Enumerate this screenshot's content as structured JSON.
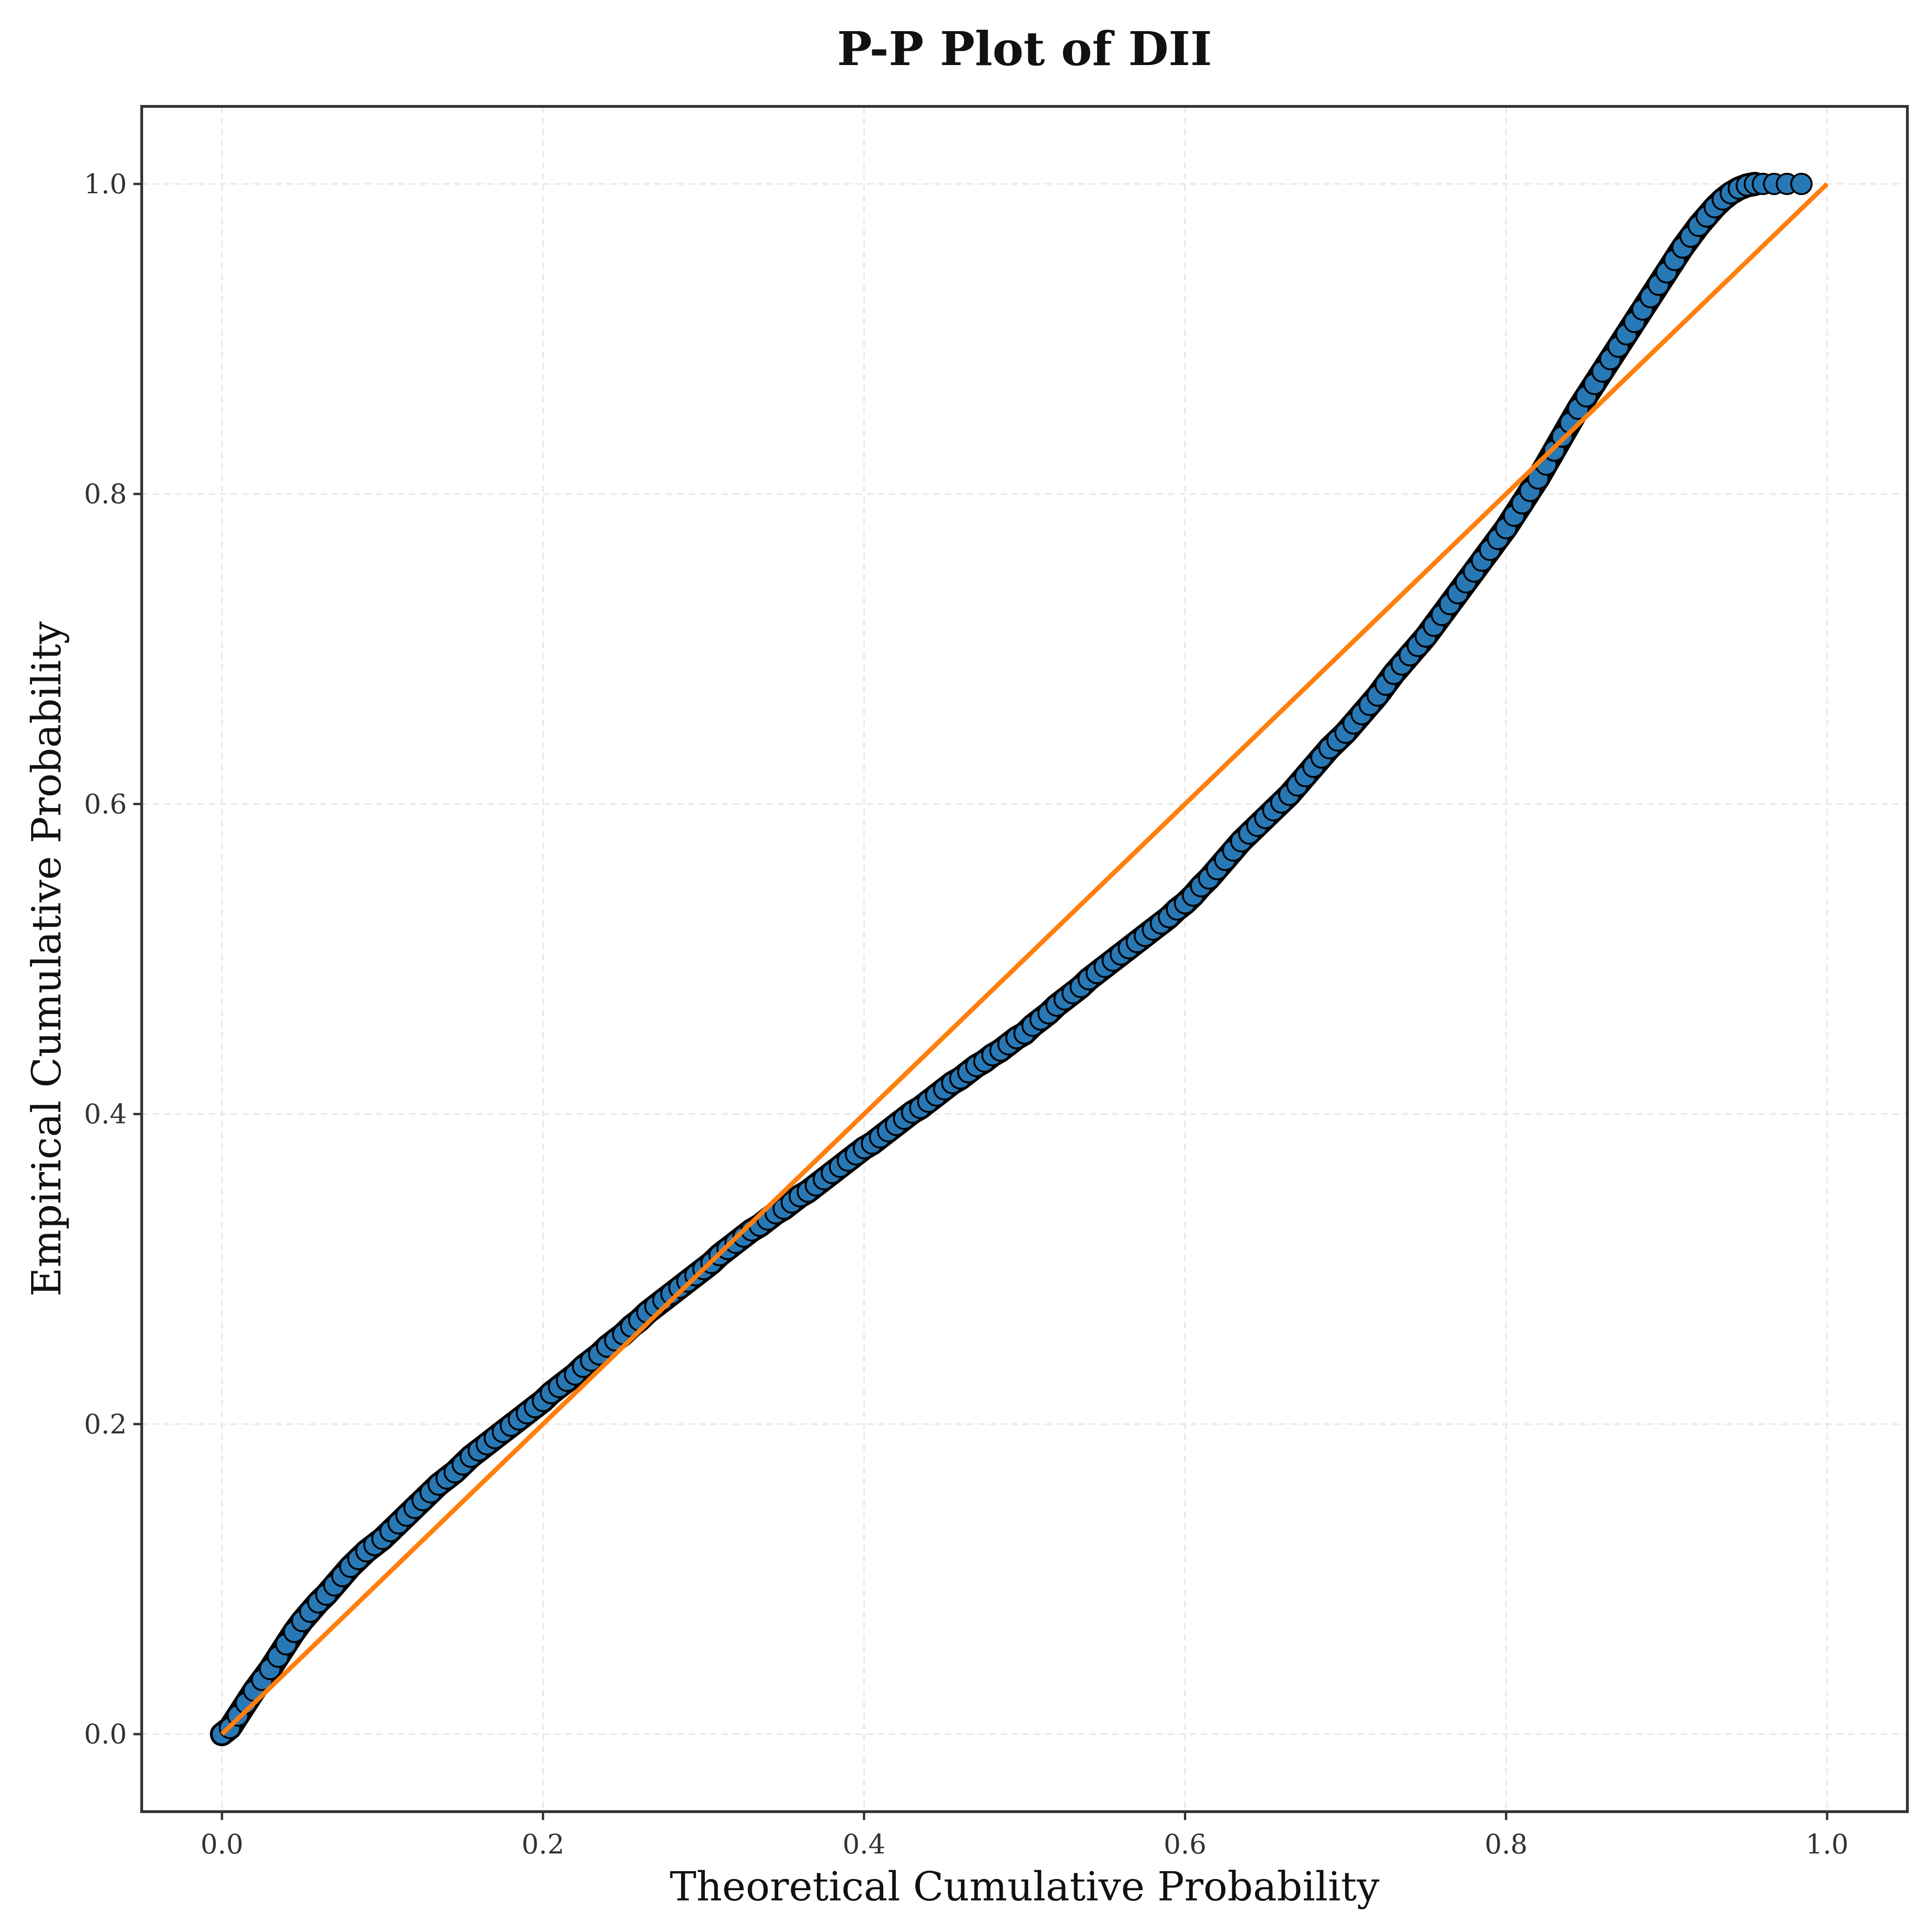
{
  "chart_data": {
    "type": "scatter",
    "title": "P-P Plot of DII",
    "xlabel": "Theoretical Cumulative Probability",
    "ylabel": "Empirical Cumulative Probability",
    "xlim": [
      -0.05,
      1.05
    ],
    "ylim": [
      -0.05,
      1.05
    ],
    "xticks": [
      "0.0",
      "0.2",
      "0.4",
      "0.6",
      "0.8",
      "1.0"
    ],
    "yticks": [
      "0.0",
      "0.2",
      "0.4",
      "0.6",
      "0.8",
      "1.0"
    ],
    "grid": true,
    "series": [
      {
        "marker_fill": "#2878b5",
        "marker_edge": "#000000",
        "points": [
          [
            0.0,
            0.0
          ],
          [
            0.005,
            0.004
          ],
          [
            0.01,
            0.012
          ],
          [
            0.015,
            0.02
          ],
          [
            0.02,
            0.028
          ],
          [
            0.025,
            0.035
          ],
          [
            0.03,
            0.042
          ],
          [
            0.035,
            0.05
          ],
          [
            0.04,
            0.058
          ],
          [
            0.045,
            0.066
          ],
          [
            0.05,
            0.073
          ],
          [
            0.055,
            0.079
          ],
          [
            0.06,
            0.085
          ],
          [
            0.065,
            0.09
          ],
          [
            0.07,
            0.096
          ],
          [
            0.075,
            0.102
          ],
          [
            0.08,
            0.108
          ],
          [
            0.085,
            0.113
          ],
          [
            0.09,
            0.118
          ],
          [
            0.095,
            0.122
          ],
          [
            0.1,
            0.126
          ],
          [
            0.105,
            0.131
          ],
          [
            0.11,
            0.136
          ],
          [
            0.115,
            0.141
          ],
          [
            0.12,
            0.146
          ],
          [
            0.125,
            0.151
          ],
          [
            0.13,
            0.156
          ],
          [
            0.135,
            0.161
          ],
          [
            0.14,
            0.165
          ],
          [
            0.145,
            0.169
          ],
          [
            0.15,
            0.174
          ],
          [
            0.155,
            0.179
          ],
          [
            0.16,
            0.183
          ],
          [
            0.165,
            0.187
          ],
          [
            0.17,
            0.191
          ],
          [
            0.175,
            0.195
          ],
          [
            0.18,
            0.199
          ],
          [
            0.185,
            0.203
          ],
          [
            0.19,
            0.207
          ],
          [
            0.195,
            0.211
          ],
          [
            0.2,
            0.215
          ],
          [
            0.205,
            0.22
          ],
          [
            0.21,
            0.224
          ],
          [
            0.215,
            0.228
          ],
          [
            0.22,
            0.232
          ],
          [
            0.225,
            0.237
          ],
          [
            0.23,
            0.241
          ],
          [
            0.235,
            0.245
          ],
          [
            0.24,
            0.25
          ],
          [
            0.245,
            0.254
          ],
          [
            0.25,
            0.258
          ],
          [
            0.255,
            0.263
          ],
          [
            0.26,
            0.267
          ],
          [
            0.265,
            0.272
          ],
          [
            0.27,
            0.276
          ],
          [
            0.275,
            0.28
          ],
          [
            0.28,
            0.284
          ],
          [
            0.285,
            0.288
          ],
          [
            0.29,
            0.292
          ],
          [
            0.295,
            0.296
          ],
          [
            0.3,
            0.3
          ],
          [
            0.305,
            0.304
          ],
          [
            0.31,
            0.309
          ],
          [
            0.315,
            0.313
          ],
          [
            0.32,
            0.317
          ],
          [
            0.325,
            0.321
          ],
          [
            0.33,
            0.325
          ],
          [
            0.335,
            0.328
          ],
          [
            0.34,
            0.332
          ],
          [
            0.345,
            0.336
          ],
          [
            0.35,
            0.339
          ],
          [
            0.355,
            0.343
          ],
          [
            0.36,
            0.347
          ],
          [
            0.365,
            0.35
          ],
          [
            0.37,
            0.354
          ],
          [
            0.375,
            0.358
          ],
          [
            0.38,
            0.362
          ],
          [
            0.385,
            0.366
          ],
          [
            0.39,
            0.37
          ],
          [
            0.395,
            0.374
          ],
          [
            0.4,
            0.378
          ],
          [
            0.405,
            0.381
          ],
          [
            0.41,
            0.385
          ],
          [
            0.415,
            0.389
          ],
          [
            0.42,
            0.393
          ],
          [
            0.425,
            0.397
          ],
          [
            0.43,
            0.401
          ],
          [
            0.435,
            0.404
          ],
          [
            0.44,
            0.408
          ],
          [
            0.445,
            0.412
          ],
          [
            0.45,
            0.416
          ],
          [
            0.455,
            0.42
          ],
          [
            0.46,
            0.423
          ],
          [
            0.465,
            0.427
          ],
          [
            0.47,
            0.431
          ],
          [
            0.475,
            0.434
          ],
          [
            0.48,
            0.438
          ],
          [
            0.485,
            0.441
          ],
          [
            0.49,
            0.445
          ],
          [
            0.495,
            0.449
          ],
          [
            0.5,
            0.452
          ],
          [
            0.505,
            0.457
          ],
          [
            0.51,
            0.461
          ],
          [
            0.515,
            0.465
          ],
          [
            0.52,
            0.47
          ],
          [
            0.525,
            0.474
          ],
          [
            0.53,
            0.478
          ],
          [
            0.535,
            0.482
          ],
          [
            0.54,
            0.487
          ],
          [
            0.545,
            0.491
          ],
          [
            0.55,
            0.495
          ],
          [
            0.555,
            0.499
          ],
          [
            0.56,
            0.503
          ],
          [
            0.565,
            0.507
          ],
          [
            0.57,
            0.511
          ],
          [
            0.575,
            0.515
          ],
          [
            0.58,
            0.519
          ],
          [
            0.585,
            0.523
          ],
          [
            0.59,
            0.527
          ],
          [
            0.595,
            0.532
          ],
          [
            0.6,
            0.536
          ],
          [
            0.605,
            0.541
          ],
          [
            0.61,
            0.547
          ],
          [
            0.615,
            0.552
          ],
          [
            0.62,
            0.558
          ],
          [
            0.625,
            0.564
          ],
          [
            0.63,
            0.57
          ],
          [
            0.635,
            0.576
          ],
          [
            0.64,
            0.581
          ],
          [
            0.645,
            0.586
          ],
          [
            0.65,
            0.591
          ],
          [
            0.655,
            0.596
          ],
          [
            0.66,
            0.601
          ],
          [
            0.665,
            0.606
          ],
          [
            0.67,
            0.612
          ],
          [
            0.675,
            0.618
          ],
          [
            0.68,
            0.624
          ],
          [
            0.685,
            0.63
          ],
          [
            0.69,
            0.636
          ],
          [
            0.695,
            0.641
          ],
          [
            0.7,
            0.646
          ],
          [
            0.705,
            0.652
          ],
          [
            0.71,
            0.658
          ],
          [
            0.715,
            0.664
          ],
          [
            0.72,
            0.67
          ],
          [
            0.725,
            0.677
          ],
          [
            0.73,
            0.684
          ],
          [
            0.735,
            0.69
          ],
          [
            0.74,
            0.696
          ],
          [
            0.745,
            0.702
          ],
          [
            0.75,
            0.708
          ],
          [
            0.755,
            0.715
          ],
          [
            0.76,
            0.722
          ],
          [
            0.765,
            0.729
          ],
          [
            0.77,
            0.736
          ],
          [
            0.775,
            0.743
          ],
          [
            0.78,
            0.75
          ],
          [
            0.785,
            0.757
          ],
          [
            0.79,
            0.764
          ],
          [
            0.795,
            0.771
          ],
          [
            0.8,
            0.778
          ],
          [
            0.805,
            0.786
          ],
          [
            0.81,
            0.794
          ],
          [
            0.815,
            0.802
          ],
          [
            0.82,
            0.81
          ],
          [
            0.825,
            0.819
          ],
          [
            0.83,
            0.828
          ],
          [
            0.835,
            0.837
          ],
          [
            0.84,
            0.846
          ],
          [
            0.845,
            0.855
          ],
          [
            0.85,
            0.863
          ],
          [
            0.855,
            0.871
          ],
          [
            0.86,
            0.879
          ],
          [
            0.865,
            0.887
          ],
          [
            0.87,
            0.895
          ],
          [
            0.875,
            0.903
          ],
          [
            0.88,
            0.911
          ],
          [
            0.885,
            0.919
          ],
          [
            0.89,
            0.927
          ],
          [
            0.895,
            0.935
          ],
          [
            0.9,
            0.943
          ],
          [
            0.905,
            0.951
          ],
          [
            0.91,
            0.959
          ],
          [
            0.915,
            0.966
          ],
          [
            0.92,
            0.973
          ],
          [
            0.925,
            0.979
          ],
          [
            0.93,
            0.985
          ],
          [
            0.935,
            0.99
          ],
          [
            0.94,
            0.994
          ],
          [
            0.945,
            0.997
          ],
          [
            0.95,
            0.999
          ],
          [
            0.955,
            1.0
          ],
          [
            0.96,
            1.0
          ],
          [
            0.967,
            1.0
          ],
          [
            0.975,
            1.0
          ],
          [
            0.984,
            1.0
          ]
        ]
      },
      {
        "type": "line",
        "color": "#ff7f0e",
        "x": [
          0.0,
          1.0
        ],
        "y": [
          0.0,
          1.0
        ]
      }
    ]
  }
}
